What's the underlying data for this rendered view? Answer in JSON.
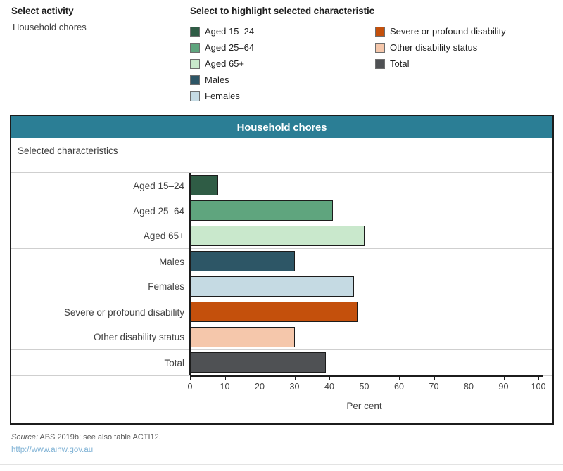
{
  "controls": {
    "select_activity_label": "Select activity",
    "select_activity_value": "Household chores",
    "highlight_label": "Select to highlight selected characteristic",
    "legend_col1": [
      {
        "label": "Aged 15–24",
        "color": "#2F5C45"
      },
      {
        "label": "Aged 25–64",
        "color": "#5FA57E"
      },
      {
        "label": "Aged 65+",
        "color": "#C9E8CC"
      },
      {
        "label": "Males",
        "color": "#2D5666"
      },
      {
        "label": "Females",
        "color": "#C5DAE3"
      }
    ],
    "legend_col2": [
      {
        "label": "Severe or profound disability",
        "color": "#C4500C"
      },
      {
        "label": "Other disability status",
        "color": "#F5C7AB"
      },
      {
        "label": "Total",
        "color": "#4F5154"
      }
    ]
  },
  "chart": {
    "title": "Household chores",
    "subtitle": "Selected characteristics",
    "header_color": "#2B7E95"
  },
  "chart_data": {
    "type": "bar",
    "orientation": "horizontal",
    "title": "Household chores",
    "categories": [
      "Aged 15–24",
      "Aged 25–64",
      "Aged 65+",
      "Males",
      "Females",
      "Severe or profound disability",
      "Other disability status",
      "Total"
    ],
    "values": [
      8,
      41,
      50,
      30,
      47,
      48,
      30,
      39
    ],
    "colors": [
      "#2F5C45",
      "#5FA57E",
      "#C9E8CC",
      "#2D5666",
      "#C5DAE3",
      "#C4500C",
      "#F5C7AB",
      "#4F5154"
    ],
    "group_end_rows": [
      2,
      4,
      6
    ],
    "xlabel": "Per cent",
    "xlim": [
      0,
      100
    ],
    "xticks": [
      0,
      10,
      20,
      30,
      40,
      50,
      60,
      70,
      80,
      90,
      100
    ],
    "grid": false,
    "legend_position": "top"
  },
  "footer": {
    "source_prefix": "Source:",
    "source_text": " ABS 2019b; see also table ACTI12.",
    "link": "http://www.aihw.gov.au"
  }
}
